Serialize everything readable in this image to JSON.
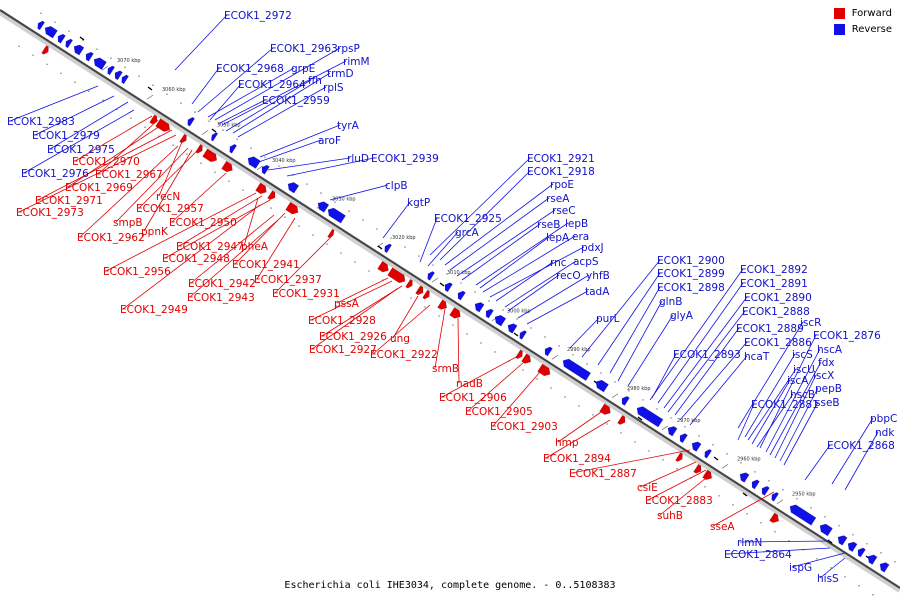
{
  "legend": {
    "forward": {
      "label": "Forward",
      "color": "#e00000"
    },
    "reverse": {
      "label": "Reverse",
      "color": "#1010e8"
    }
  },
  "caption": "Escherichia coli IHE3034, complete genome. - 0..5108383",
  "ticks": [
    "3070 kbp",
    "3060 kbp",
    "3050 kbp",
    "3040 kbp",
    "3030 kbp",
    "3020 kbp",
    "3010 kbp",
    "3000 kbp",
    "2990 kbp",
    "2980 kbp",
    "2970 kbp",
    "2960 kbp",
    "2950 kbp"
  ],
  "reverse_labels": [
    "ECOK1_2972",
    "ECOK1_2963",
    "rpsP",
    "rimM",
    "ECOK1_2968",
    "grpE",
    "trmD",
    "ffh",
    "ECOK1_2964",
    "rplS",
    "ECOK1_2959",
    "ECOK1_2983",
    "ECOK1_2979",
    "tyrA",
    "ECOK1_2975",
    "aroF",
    "rluD",
    "ECOK1_2939",
    "ECOK1_2976",
    "clpB",
    "kgtP",
    "ECOK1_2921",
    "ECOK1_2918",
    "rpoE",
    "rseA",
    "rseC",
    "rseB",
    "lepB",
    "lepA",
    "era",
    "ECOK1_2925",
    "grcA",
    "pdxJ",
    "rnc",
    "acpS",
    "recO",
    "yhfB",
    "tadA",
    "purL",
    "ECOK1_2900",
    "ECOK1_2899",
    "ECOK1_2898",
    "glnB",
    "glyA",
    "ECOK1_2892",
    "ECOK1_2891",
    "ECOK1_2890",
    "ECOK1_2888",
    "iscR",
    "ECOK1_2889",
    "ECOK1_2886",
    "ECOK1_2876",
    "ECOK1_2893",
    "hcaT",
    "iscS",
    "hscA",
    "iscU",
    "fdx",
    "iscA",
    "iscX",
    "hscB",
    "pepB",
    "ECOK1_2881",
    "sseB",
    "pbpC",
    "ndk",
    "ECOK1_2868",
    "rlmN",
    "ECOK1_2864",
    "ispG",
    "hisS"
  ],
  "forward_labels": [
    "ECOK1_2970",
    "ECOK1_2967",
    "ECOK1_2969",
    "ECOK1_2971",
    "ECOK1_2973",
    "recN",
    "ECOK1_2957",
    "smpB",
    "ppnK",
    "ECOK1_2962",
    "ECOK1_2950",
    "ECOK1_2947",
    "pheA",
    "ECOK1_2948",
    "ECOK1_2956",
    "ECOK1_2941",
    "ECOK1_2937",
    "ECOK1_2942",
    "ECOK1_2943",
    "ECOK1_2931",
    "ECOK1_2949",
    "pssA",
    "ECOK1_2928",
    "ECOK1_2926",
    "ung",
    "ECOK1_2927",
    "ECOK1_2922",
    "srmB",
    "nadB",
    "ECOK1_2906",
    "ECOK1_2905",
    "ECOK1_2903",
    "hmp",
    "ECOK1_2894",
    "ECOK1_2887",
    "csiE",
    "ECOK1_2883",
    "suhB",
    "sseA"
  ]
}
